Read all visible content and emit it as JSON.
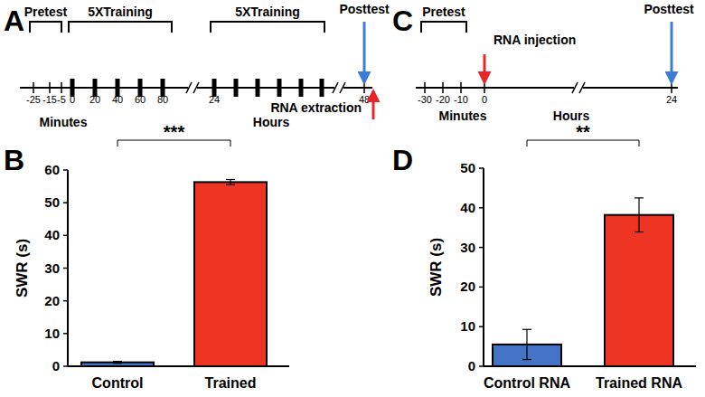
{
  "chart_data": [
    {
      "type": "bar",
      "title": "B",
      "y_label": "SWR (s)",
      "categories": [
        "Control",
        "Trained"
      ],
      "values": [
        1.2,
        56.3
      ],
      "errors": [
        0.3,
        0.8
      ],
      "colors": [
        "#4472c4",
        "#ee3524"
      ],
      "ylim": [
        0,
        60
      ],
      "yticks": [
        0,
        10,
        20,
        30,
        40,
        50,
        60
      ],
      "annotations": [
        "***"
      ]
    },
    {
      "type": "bar",
      "title": "D",
      "y_label": "SWR (s)",
      "categories": [
        "Control RNA",
        "Trained RNA"
      ],
      "values": [
        5.5,
        38.2
      ],
      "errors": [
        3.8,
        4.3
      ],
      "colors": [
        "#4472c4",
        "#ee3524"
      ],
      "ylim": [
        0,
        50
      ],
      "yticks": [
        0,
        10,
        20,
        30,
        40,
        50
      ],
      "annotations": [
        "**"
      ]
    }
  ],
  "timelines": [
    {
      "label": "A",
      "ticks": [
        "-25",
        "-15",
        "-5",
        "0",
        "20",
        "40",
        "60",
        "80",
        "24",
        "48"
      ],
      "units": [
        "Minutes",
        "Hours"
      ],
      "brackets": [
        "Pretest",
        "5XTraining",
        "5XTraining"
      ],
      "arrows": [
        "Posttest",
        "RNA extraction"
      ]
    },
    {
      "label": "C",
      "ticks": [
        "-30",
        "-20",
        "-10",
        "0",
        "24"
      ],
      "units": [
        "Minutes",
        "Hours"
      ],
      "brackets": [
        "Pretest"
      ],
      "arrows": [
        "RNA injection",
        "Posttest"
      ]
    }
  ]
}
